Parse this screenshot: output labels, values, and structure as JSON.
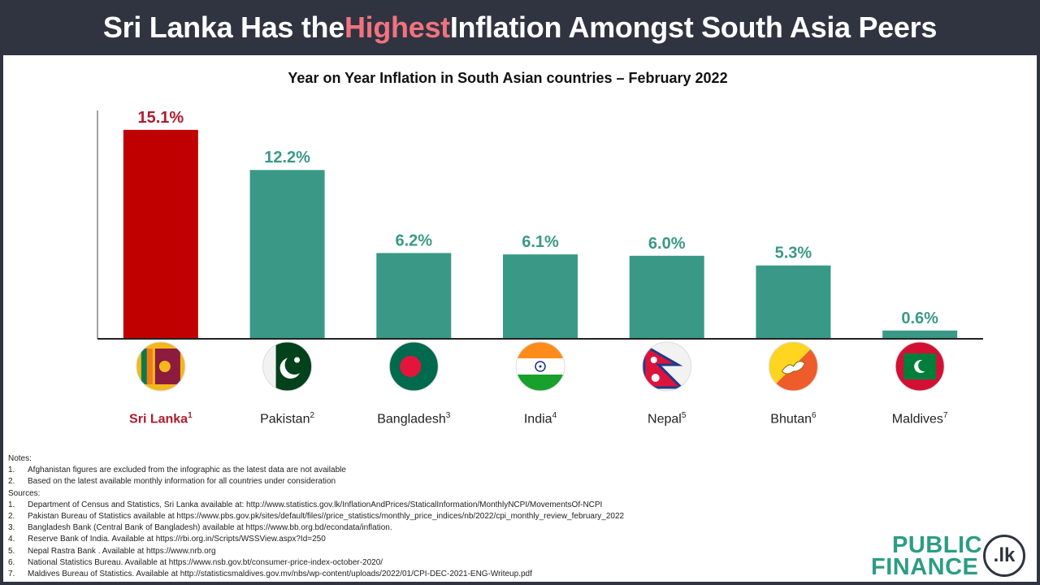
{
  "header": {
    "title_pre": "Sri Lanka Has the ",
    "title_highlight": "Highest",
    "title_post": " Inflation Amongst South Asia Peers"
  },
  "colors": {
    "highlight": "#c00000",
    "bar": "#3a9986",
    "highlight_text": "#b01c2e",
    "bar_text": "#3a9986"
  },
  "chart_data": {
    "type": "bar",
    "title": "Year on Year Inflation in South Asian countries  – February 2022",
    "categories": [
      "Sri Lanka",
      "Pakistan",
      "Bangladesh",
      "India",
      "Nepal",
      "Bhutan",
      "Maldives"
    ],
    "footnote_marks": [
      "1",
      "2",
      "3",
      "4",
      "5",
      "6",
      "7"
    ],
    "values": [
      15.1,
      12.2,
      6.2,
      6.1,
      6.0,
      5.3,
      0.6
    ],
    "value_labels": [
      "15.1%",
      "12.2%",
      "6.2%",
      "6.1%",
      "6.0%",
      "5.3%",
      "0.6%"
    ],
    "highlight_index": 0,
    "flag_icons": [
      "sri-lanka-flag-icon",
      "pakistan-flag-icon",
      "bangladesh-flag-icon",
      "india-flag-icon",
      "nepal-flag-icon",
      "bhutan-flag-icon",
      "maldives-flag-icon"
    ],
    "ylim": [
      0,
      16.5
    ],
    "grid": false,
    "legend": "none"
  },
  "notes": {
    "heading": "Notes:",
    "items": [
      {
        "num": "1.",
        "text": "Afghanistan figures are excluded from the infographic as the latest data are not available"
      },
      {
        "num": "2.",
        "text": "Based on the latest available monthly information for all countries under consideration"
      }
    ]
  },
  "sources": {
    "heading": "Sources:",
    "items": [
      {
        "num": "1.",
        "text": "Department of Census and Statistics, Sri Lanka available at: http://www.statistics.gov.lk/InflationAndPrices/StaticalInformation/MonthlyNCPI/MovementsOf-NCPI"
      },
      {
        "num": "2.",
        "text": "Pakistan Bureau of Statistics  available at https://www.pbs.gov.pk/sites/default/files//price_statistics/monthly_price_indices/nb/2022/cpi_monthly_review_february_2022"
      },
      {
        "num": "3.",
        "text": "Bangladesh Bank (Central Bank of Bangladesh) available at https://www.bb.org.bd/econdata/inflation."
      },
      {
        "num": "4.",
        "text": "Reserve Bank of India.  Available at https://rbi.org.in/Scripts/WSSView.aspx?Id=250"
      },
      {
        "num": "5.",
        "text": "Nepal Rastra Bank . Available at https://www.nrb.org"
      },
      {
        "num": "6.",
        "text": "National Statistics Bureau.  Available at https://www.nsb.gov.bt/consumer-price-index-october-2020/"
      },
      {
        "num": "7.",
        "text": "Maldives Bureau of Statistics.  Available at http://statisticsmaldives.gov.mv/nbs/wp-content/uploads/2022/01/CPI-DEC-2021-ENG-Writeup.pdf"
      }
    ]
  },
  "logo": {
    "line1": "PUBLIC",
    "line2": "FINANCE",
    "badge": ".lk"
  }
}
